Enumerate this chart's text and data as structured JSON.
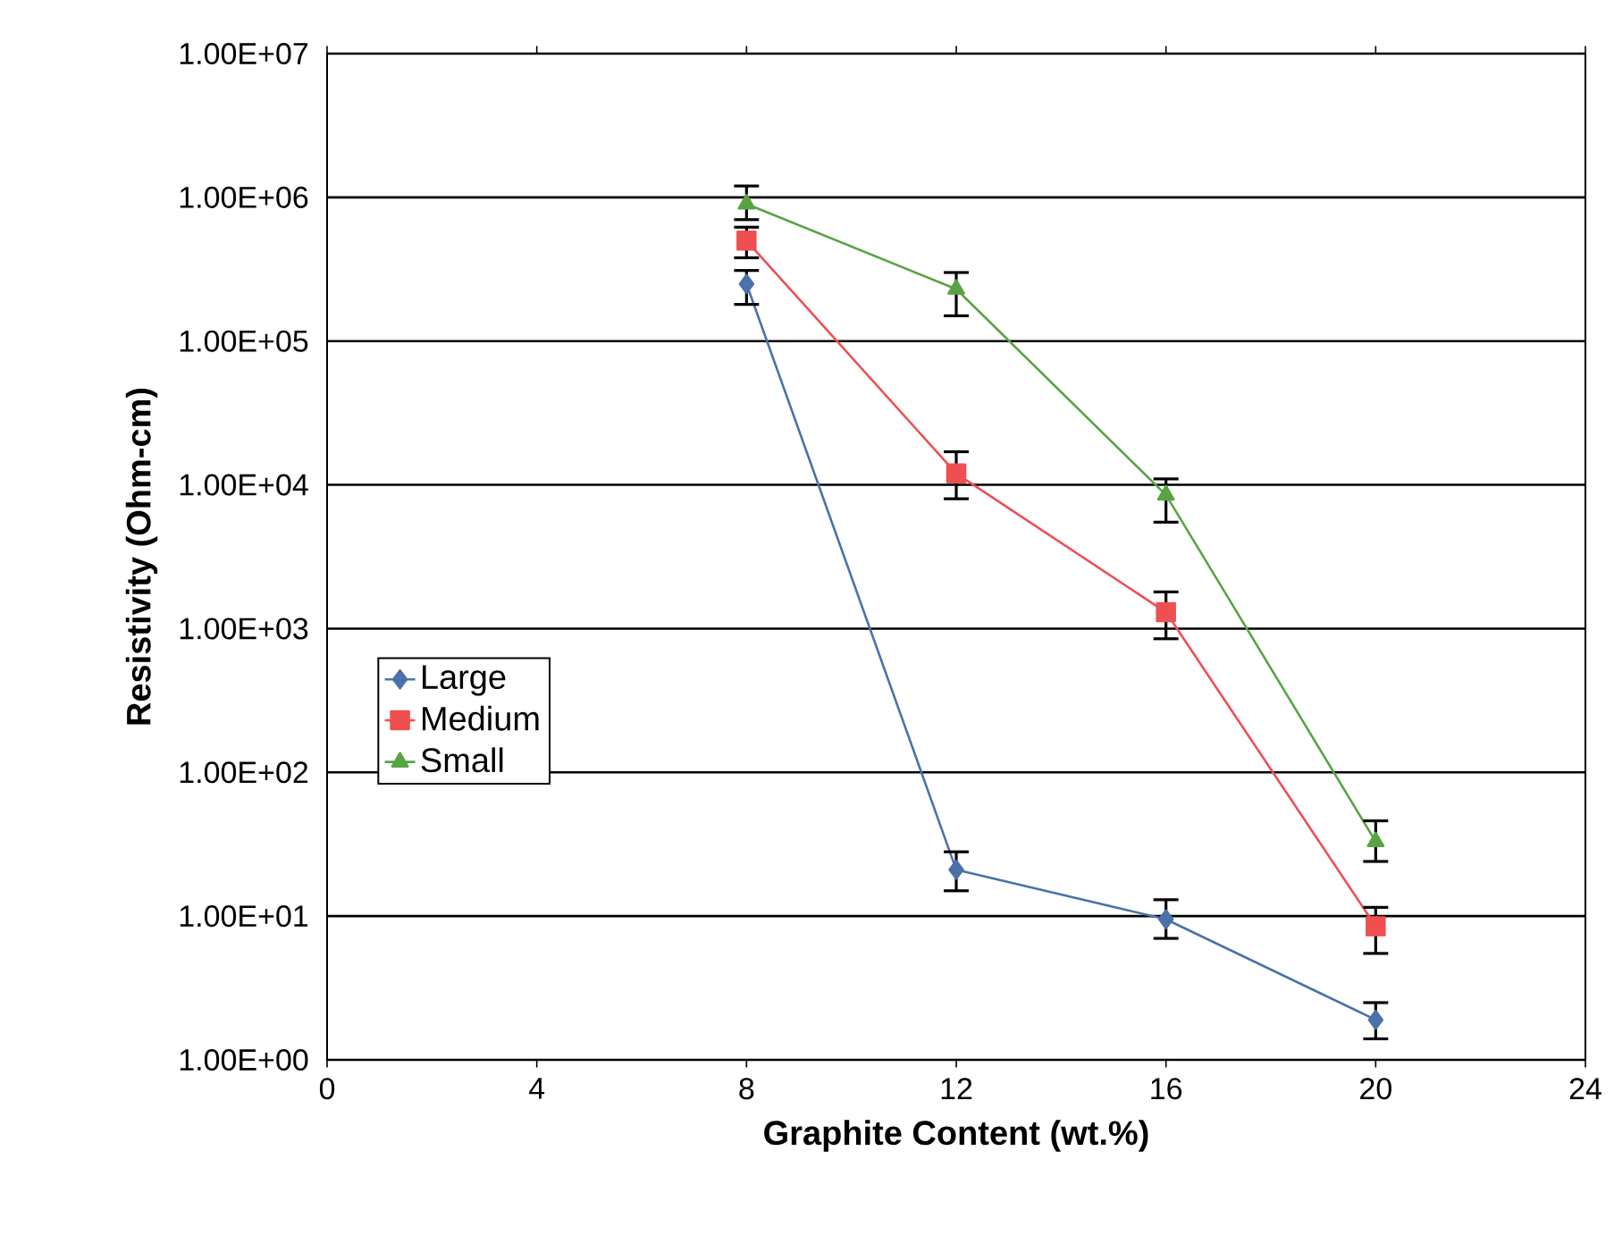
{
  "chart_data": {
    "type": "line",
    "xlabel": "Graphite Content (wt.%)",
    "ylabel": "Resistivity (Ohm-cm)",
    "log": "y",
    "grid": "y",
    "legend": "left",
    "xlim": [
      0,
      24
    ],
    "xticks": [
      0,
      4,
      8,
      12,
      16,
      20,
      24
    ],
    "ylim": [
      1,
      10000000
    ],
    "yticks": [
      {
        "value": 1,
        "label": "1.00E+00"
      },
      {
        "value": 10,
        "label": "1.00E+01"
      },
      {
        "value": 100,
        "label": "1.00E+02"
      },
      {
        "value": 1000,
        "label": "1.00E+03"
      },
      {
        "value": 10000,
        "label": "1.00E+04"
      },
      {
        "value": 100000,
        "label": "1.00E+05"
      },
      {
        "value": 1000000,
        "label": "1.00E+06"
      },
      {
        "value": 10000000,
        "label": "1.00E+07"
      }
    ],
    "x": [
      8,
      12,
      16,
      20
    ],
    "series": [
      {
        "name": "Large",
        "color": "#4a72a8",
        "marker": "diamond",
        "values": [
          250000,
          21,
          9.5,
          1.9
        ],
        "errors": [
          [
            180000,
            310000
          ],
          [
            15,
            28
          ],
          [
            7,
            13
          ],
          [
            1.4,
            2.5
          ]
        ]
      },
      {
        "name": "Medium",
        "color": "#ee4f50",
        "marker": "square",
        "values": [
          500000,
          12000,
          1300,
          8.5
        ],
        "errors": [
          [
            380000,
            620000
          ],
          [
            8000,
            17000
          ],
          [
            850,
            1800
          ],
          [
            5.5,
            11.5
          ]
        ]
      },
      {
        "name": "Small",
        "color": "#58a444",
        "marker": "triangle",
        "values": [
          900000,
          230000,
          8500,
          33
        ],
        "errors": [
          [
            700000,
            1200000
          ],
          [
            150000,
            300000
          ],
          [
            5500,
            11000
          ],
          [
            24,
            46
          ]
        ]
      }
    ]
  }
}
